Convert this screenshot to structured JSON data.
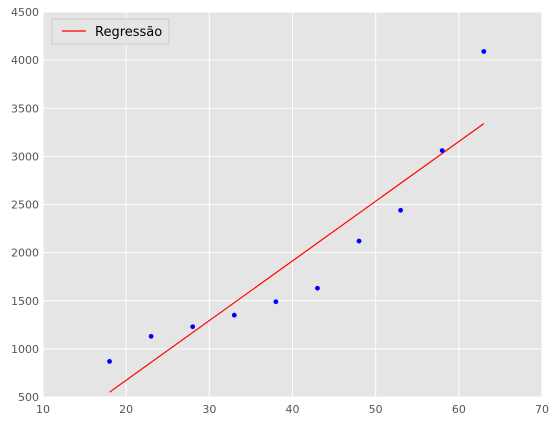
{
  "chart_data": {
    "type": "scatter",
    "style": "ggplot",
    "xlim": [
      10,
      70
    ],
    "ylim": [
      500,
      4500
    ],
    "xticks": [
      10,
      20,
      30,
      40,
      50,
      60,
      70
    ],
    "yticks": [
      500,
      1000,
      1500,
      2000,
      2500,
      3000,
      3500,
      4000,
      4500
    ],
    "grid": true,
    "legend_position": "top-left",
    "colors": {
      "background": "#e5e5e5",
      "grid": "#ffffff",
      "points": "#0000ff",
      "line": "#ff0000",
      "tick_text": "#555555"
    },
    "series": [
      {
        "kind": "scatter",
        "x": [
          18,
          23,
          28,
          33,
          38,
          43,
          48,
          53,
          58,
          63
        ],
        "y": [
          870,
          1130,
          1230,
          1350,
          1490,
          1630,
          2120,
          2440,
          3060,
          4090
        ]
      },
      {
        "kind": "line",
        "name": "Regressão",
        "x": [
          18,
          63
        ],
        "y": [
          550,
          3340
        ]
      }
    ]
  }
}
